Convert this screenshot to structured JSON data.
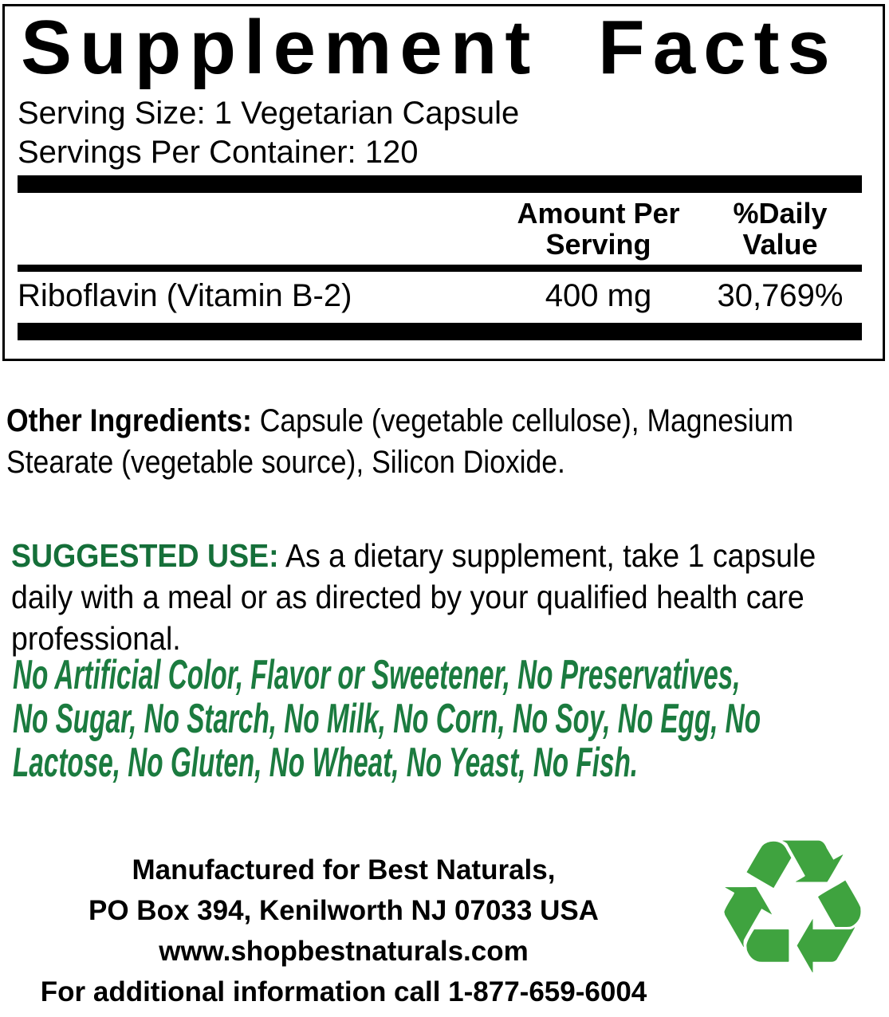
{
  "panel": {
    "title": "Supplement Facts",
    "serving_size": "Serving Size: 1 Vegetarian Capsule",
    "servings_per_container": "Servings Per Container: 120",
    "columns": {
      "amount_per_serving": "Amount Per Serving",
      "daily_value": "%Daily Value"
    },
    "rows": [
      {
        "name": "Riboflavin (Vitamin B-2)",
        "amount": "400 mg",
        "daily_value": "30,769%"
      }
    ]
  },
  "other_ingredients": {
    "label": "Other Ingredients:",
    "text": " Capsule (vegetable cellulose), Magnesium Stearate (vegetable source), Silicon Dioxide."
  },
  "suggested_use": {
    "label": "SUGGESTED USE:",
    "text": " As a dietary supplement, take 1 capsule daily with a meal or as directed by your qualified health care professional."
  },
  "free_of": {
    "lines": [
      "No Artificial Color, Flavor or Sweetener, No Preservatives,",
      "No Sugar, No Starch, No Milk, No Corn, No Soy, No Egg, No",
      "Lactose, No Gluten, No Wheat, No Yeast, No Fish."
    ]
  },
  "footer": {
    "lines": [
      "Manufactured for Best Naturals,",
      "PO Box 394, Kenilworth NJ 07033 USA",
      "www.shopbestnaturals.com",
      "For additional information call 1-877-659-6004"
    ]
  },
  "icons": {
    "recycle": "♻"
  },
  "colors": {
    "green_heading": "#156f39",
    "green_freeof": "#1b7b3f",
    "recycle_green": "#3fa33f",
    "ink": "#000000"
  }
}
